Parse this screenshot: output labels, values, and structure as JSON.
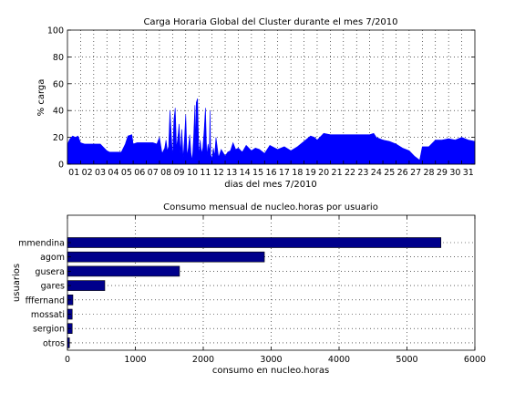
{
  "chart_data": [
    {
      "type": "area",
      "title": "Carga Horaria Global del Cluster durante el mes 7/2010",
      "xlabel": "dias del mes 7/2010",
      "ylabel": "% carga",
      "ylim": [
        0,
        100
      ],
      "yticks": [
        0,
        20,
        40,
        60,
        80,
        100
      ],
      "xlim": [
        1,
        32
      ],
      "x_tick_labels": [
        "01",
        "02",
        "03",
        "04",
        "05",
        "06",
        "07",
        "08",
        "09",
        "10",
        "11",
        "12",
        "13",
        "14",
        "15",
        "16",
        "17",
        "18",
        "19",
        "20",
        "21",
        "22",
        "23",
        "24",
        "25",
        "26",
        "27",
        "28",
        "29",
        "30",
        "31"
      ],
      "grid": true,
      "color": "#0000ff",
      "series": [
        {
          "x": [
            1.0,
            1.2,
            1.4,
            1.6,
            1.8,
            2.0,
            2.3,
            2.5,
            2.8,
            3.0,
            3.5,
            4.0,
            4.2,
            4.5,
            5.0,
            5.1,
            5.4,
            5.6,
            5.9,
            6.0,
            6.3,
            6.6,
            7.0,
            7.5,
            7.8,
            8.0,
            8.2,
            8.4,
            8.5,
            8.6,
            8.7,
            8.8,
            9.0,
            9.1,
            9.2,
            9.3,
            9.4,
            9.5,
            9.6,
            9.7,
            9.8,
            9.9,
            10.0,
            10.1,
            10.2,
            10.3,
            10.4,
            10.5,
            10.6,
            10.7,
            10.75,
            10.8,
            10.9,
            11.0,
            11.1,
            11.2,
            11.3,
            11.4,
            11.5,
            11.6,
            11.7,
            11.8,
            11.85,
            11.9,
            12.0,
            12.1,
            12.2,
            12.3,
            12.5,
            12.7,
            13.0,
            13.2,
            13.4,
            13.6,
            13.8,
            14.0,
            14.3,
            14.6,
            15.0,
            15.3,
            15.6,
            16.0,
            16.4,
            17.0,
            17.5,
            18.0,
            18.5,
            19.0,
            19.5,
            19.8,
            20.0,
            20.5,
            21.0,
            22.0,
            23.0,
            24.0,
            24.3,
            24.5,
            25.0,
            25.5,
            26.0,
            26.5,
            27.0,
            27.4,
            27.8,
            28.0,
            28.5,
            29.0,
            29.5,
            30.0,
            30.5,
            31.0,
            31.5,
            32.0
          ],
          "y": [
            15,
            19,
            21,
            20,
            21,
            16,
            15,
            15,
            15,
            15,
            15,
            10,
            9,
            9,
            9,
            9,
            15,
            21,
            22,
            15,
            16,
            16,
            16,
            16,
            15,
            20,
            8,
            12,
            18,
            10,
            13,
            40,
            5,
            33,
            42,
            12,
            20,
            30,
            8,
            26,
            4,
            18,
            37,
            6,
            12,
            22,
            8,
            3,
            20,
            44,
            12,
            46,
            49,
            6,
            18,
            8,
            12,
            25,
            42,
            6,
            15,
            9,
            40,
            7,
            4,
            12,
            6,
            20,
            5,
            11,
            6,
            9,
            10,
            16,
            11,
            12,
            9,
            14,
            10,
            12,
            11,
            8,
            14,
            11,
            13,
            10,
            13,
            17,
            21,
            20,
            18,
            23,
            22,
            22,
            22,
            22,
            23,
            20,
            18,
            17,
            15,
            12,
            10,
            6,
            3,
            13,
            13,
            18,
            18,
            19,
            18,
            20,
            18,
            17
          ]
        }
      ]
    },
    {
      "type": "bar",
      "orientation": "horizontal",
      "title": "Consumo mensual de nucleo.horas por usuario",
      "xlabel": "consumo en nucleo.horas",
      "ylabel": "usuarios",
      "xlim": [
        0,
        6000
      ],
      "xticks": [
        0,
        1000,
        2000,
        3000,
        4000,
        5000,
        6000
      ],
      "grid": true,
      "color": "#00008b",
      "categories": [
        "mmendina",
        "agom",
        "gusera",
        "gares",
        "fffernand",
        "mossati",
        "sergion",
        "otros"
      ],
      "values": [
        5500,
        2900,
        1650,
        550,
        80,
        70,
        70,
        30
      ]
    }
  ]
}
